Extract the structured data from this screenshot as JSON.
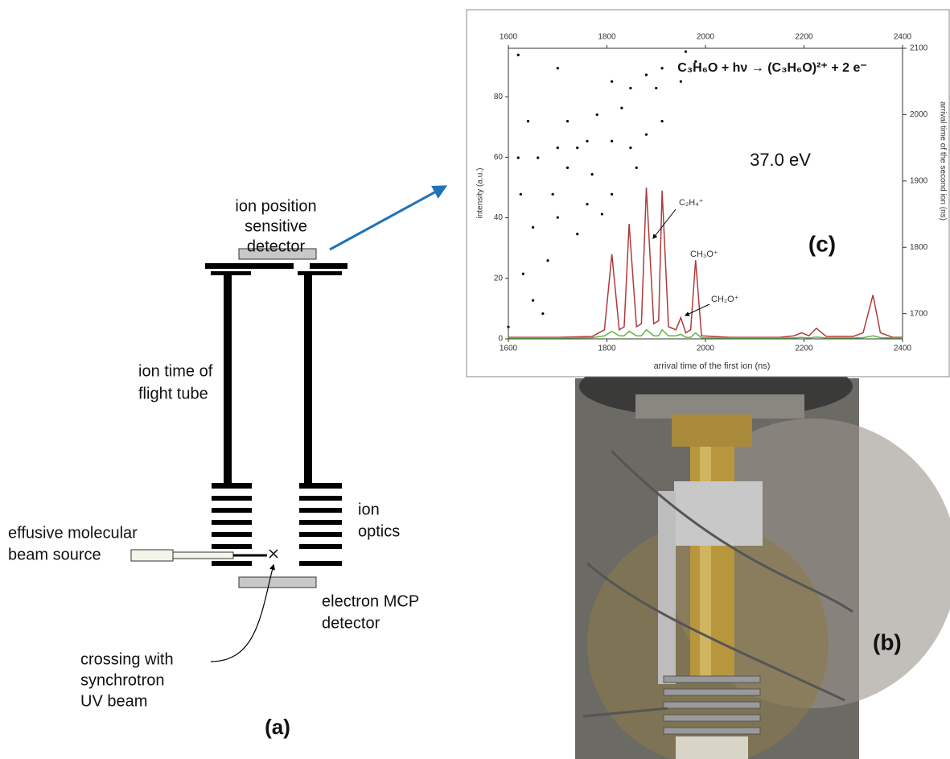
{
  "panel_a": {
    "detector_label": [
      "ion position",
      "sensitive",
      "detector"
    ],
    "tube_label": [
      "ion time of",
      "flight tube"
    ],
    "optics_label": [
      "ion",
      "optics"
    ],
    "source_label": [
      "effusive molecular",
      "beam source"
    ],
    "mcp_label": [
      "electron MCP",
      "detector"
    ],
    "crossing_label": [
      "crossing with",
      "synchrotron",
      "UV beam"
    ],
    "panel_label": "(a)"
  },
  "panel_b": {
    "panel_label": "(b)"
  },
  "chart_data": [
    {
      "type": "line",
      "title": "C₃H₆O + hν → (C₃H₆O)²⁺ + 2 e⁻",
      "energy_label": "37.0 eV",
      "panel_label": "(c)",
      "xlabel": "arrival time of the first ion (ns)",
      "ylabel": "intensity (a.u.)",
      "xlim": [
        1600,
        2400
      ],
      "xticks": [
        1600,
        1800,
        2000,
        2200,
        2400
      ],
      "ylim": [
        0,
        96
      ],
      "yticks": [
        0,
        20,
        40,
        60,
        80
      ],
      "x": [
        1600,
        1700,
        1770,
        1795,
        1810,
        1825,
        1835,
        1845,
        1860,
        1870,
        1880,
        1895,
        1905,
        1912,
        1925,
        1940,
        1950,
        1960,
        1970,
        1980,
        1992,
        2050,
        2150,
        2180,
        2195,
        2210,
        2225,
        2245,
        2300,
        2320,
        2340,
        2355,
        2380,
        2400
      ],
      "series": [
        {
          "color": "#b03a3a",
          "values": [
            0.5,
            0.5,
            0.8,
            3,
            28,
            3,
            4,
            38,
            4,
            5,
            50,
            5,
            6,
            49,
            4,
            3,
            7,
            2,
            3,
            26,
            1,
            0.5,
            0.5,
            1,
            2,
            1,
            3.5,
            0.8,
            0.8,
            2,
            14.5,
            2,
            0.5,
            0.5
          ]
        },
        {
          "color": "#5cb83a",
          "values": [
            0.3,
            0.3,
            0.4,
            1,
            2.5,
            1,
            1,
            2.5,
            1,
            1,
            3,
            1,
            1,
            3,
            1,
            1,
            1.5,
            0.5,
            0.5,
            2,
            0.3,
            0.3,
            0.3,
            0.3,
            0.5,
            0.3,
            0.6,
            0.3,
            0.3,
            0.4,
            1,
            0.4,
            0.3,
            0.3
          ]
        }
      ],
      "annotations": [
        "C₂H₄⁺",
        "CH₃O⁺",
        "CH₂O⁺"
      ]
    },
    {
      "type": "scatter",
      "ylabel": "arrival time of the second ion (ns)",
      "color": "#000000",
      "xlim": [
        1600,
        2400
      ],
      "xticks": [
        1600,
        1800,
        2000,
        2200,
        2400
      ],
      "ylim": [
        1662,
        2100
      ],
      "yticks": [
        1700,
        1800,
        1900,
        2000,
        2100
      ],
      "x": [
        1620,
        1660,
        1700,
        1740,
        1625,
        1690,
        1760,
        1640,
        1720,
        1650,
        1700,
        1770,
        1810,
        1810,
        1810,
        1848,
        1848,
        1880,
        1880,
        1912,
        1912,
        1780,
        1830,
        1860,
        1900,
        1700,
        1620,
        1680,
        1740,
        1790,
        1630,
        1670,
        1950,
        1980,
        1960,
        1650,
        1720,
        1760,
        1600
      ],
      "values": [
        1935,
        1935,
        1950,
        1950,
        1880,
        1880,
        1865,
        1990,
        1990,
        1830,
        1845,
        1910,
        2050,
        1960,
        1880,
        2040,
        1950,
        2060,
        1970,
        2070,
        1990,
        2000,
        2010,
        1920,
        2040,
        2070,
        2090,
        1780,
        1820,
        1850,
        1760,
        1700,
        2050,
        2080,
        2095,
        1720,
        1920,
        1960,
        1680
      ]
    }
  ]
}
